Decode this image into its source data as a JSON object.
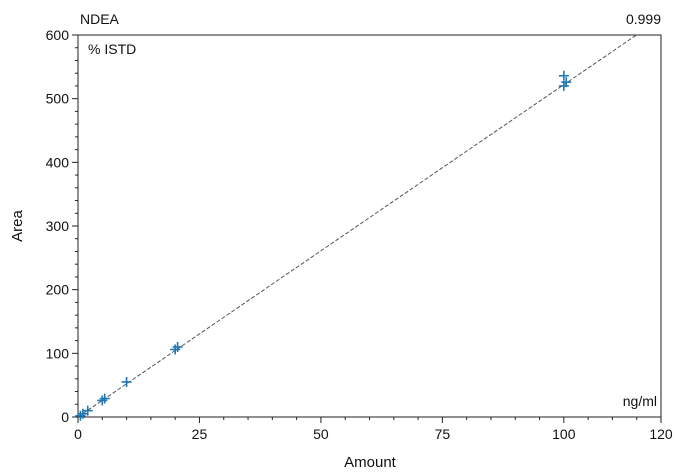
{
  "chart_data": {
    "type": "scatter",
    "compound": "NDEA",
    "correlation": "0.999",
    "mode_label": "% ISTD",
    "units_label": "ng/ml",
    "xlabel": "Amount",
    "ylabel": "Area",
    "xlim": [
      0,
      120
    ],
    "ylim": [
      0,
      600
    ],
    "x_ticks": [
      0,
      25,
      50,
      75,
      100,
      120
    ],
    "y_ticks": [
      0,
      100,
      200,
      300,
      400,
      500,
      600
    ],
    "grid": false,
    "series": [
      {
        "marker": "plus",
        "color": "#1f77b4",
        "points": [
          {
            "x": 0.5,
            "y": 2
          },
          {
            "x": 1,
            "y": 5
          },
          {
            "x": 2,
            "y": 10
          },
          {
            "x": 5,
            "y": 26
          },
          {
            "x": 5.5,
            "y": 29
          },
          {
            "x": 10,
            "y": 55
          },
          {
            "x": 20,
            "y": 106
          },
          {
            "x": 20.5,
            "y": 110
          },
          {
            "x": 100,
            "y": 520
          },
          {
            "x": 100.5,
            "y": 526
          },
          {
            "x": 100,
            "y": 536
          }
        ]
      }
    ],
    "fit_line": {
      "slope": 5.22,
      "intercept": 0,
      "color": "#555555",
      "style": "dashed"
    }
  }
}
